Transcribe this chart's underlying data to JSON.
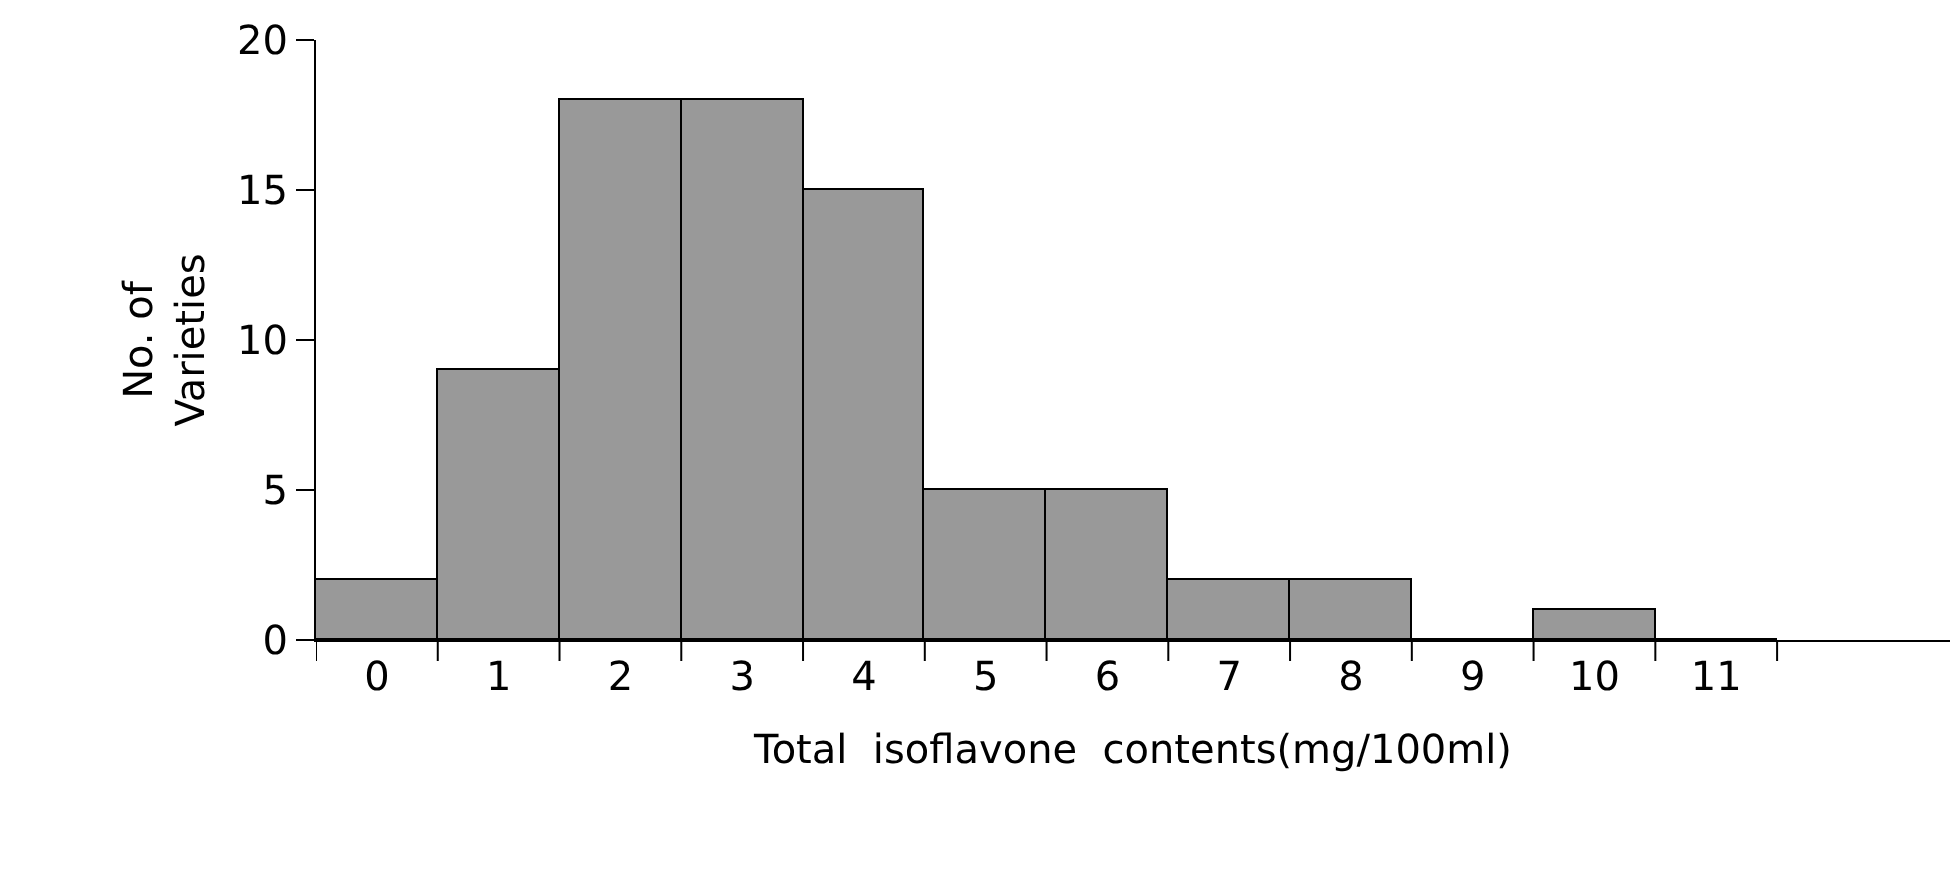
{
  "chart_data": {
    "type": "bar",
    "xlabel": "Total  isoflavone  contents(mg/100ml)",
    "ylabel": "No. of\nVarieties",
    "categories": [
      "0",
      "1",
      "2",
      "3",
      "4",
      "5",
      "6",
      "7",
      "8",
      "9",
      "10",
      "11"
    ],
    "values": [
      2,
      9,
      18,
      18,
      15,
      5,
      5,
      2,
      2,
      0,
      1,
      0
    ],
    "color": "#999999",
    "ylim": [
      0,
      20
    ],
    "yticks": [
      0,
      5,
      10,
      15,
      20
    ]
  }
}
